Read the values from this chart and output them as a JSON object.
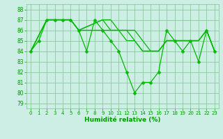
{
  "xlabel": "Humidité relative (%)",
  "background_color": "#cceee4",
  "grid_color": "#88cc99",
  "line_color": "#00bb00",
  "tick_color": "#009900",
  "xlim": [
    -0.5,
    23.5
  ],
  "ylim": [
    78.5,
    88.5
  ],
  "yticks": [
    79,
    80,
    81,
    82,
    83,
    84,
    85,
    86,
    87,
    88
  ],
  "xticks": [
    0,
    1,
    2,
    3,
    4,
    5,
    6,
    7,
    8,
    9,
    10,
    11,
    12,
    13,
    14,
    15,
    16,
    17,
    18,
    19,
    20,
    21,
    22,
    23
  ],
  "series": [
    {
      "x": [
        0,
        1,
        2,
        3,
        4,
        5,
        6,
        7,
        8,
        9,
        10,
        11,
        12,
        13,
        14,
        15,
        16,
        17,
        18,
        19,
        20,
        21,
        22,
        23
      ],
      "y": [
        84,
        85,
        87,
        87,
        87,
        87,
        86,
        84,
        87,
        86,
        85,
        84,
        82,
        80,
        81,
        81,
        82,
        86,
        85,
        84,
        85,
        83,
        86,
        84
      ],
      "marker": "D",
      "markersize": 2.5
    },
    {
      "x": [
        0,
        2,
        3,
        4,
        5,
        6,
        9,
        10,
        11,
        12,
        13,
        14,
        15,
        16,
        17,
        18,
        19,
        20,
        21,
        22,
        23
      ],
      "y": [
        84,
        87,
        87,
        87,
        87,
        86,
        86,
        86,
        86,
        85,
        85,
        84,
        84,
        84,
        85,
        85,
        85,
        85,
        85,
        86,
        84
      ],
      "marker": null,
      "markersize": 0
    },
    {
      "x": [
        0,
        2,
        3,
        4,
        5,
        6,
        9,
        10,
        11,
        12,
        13,
        14,
        15,
        16,
        17,
        18,
        19,
        20,
        21,
        22,
        23
      ],
      "y": [
        84,
        87,
        87,
        87,
        87,
        86,
        87,
        86,
        86,
        86,
        85,
        84,
        84,
        84,
        85,
        85,
        85,
        85,
        85,
        86,
        84
      ],
      "marker": null,
      "markersize": 0
    },
    {
      "x": [
        0,
        2,
        3,
        4,
        5,
        6,
        9,
        10,
        11,
        12,
        13,
        14,
        15,
        16,
        17,
        18,
        19,
        20,
        21,
        22,
        23
      ],
      "y": [
        84,
        87,
        87,
        87,
        87,
        86,
        87,
        87,
        86,
        86,
        86,
        85,
        84,
        84,
        85,
        85,
        85,
        85,
        85,
        86,
        84
      ],
      "marker": null,
      "markersize": 0
    }
  ]
}
